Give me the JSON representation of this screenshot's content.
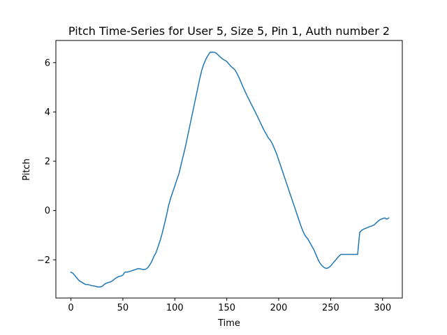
{
  "chart_data": {
    "type": "line",
    "title": "Pitch Time-Series for User 5, Size 5, Pin 1, Auth number 2",
    "xlabel": "Time",
    "ylabel": "Pitch",
    "xlim": [
      -14.5,
      319
    ],
    "ylim": [
      -3.55,
      6.9
    ],
    "xticks": [
      0,
      50,
      100,
      150,
      200,
      250,
      300
    ],
    "xtick_labels": [
      "0",
      "50",
      "100",
      "150",
      "200",
      "250",
      "300"
    ],
    "yticks": [
      -2,
      0,
      2,
      4,
      6
    ],
    "ytick_labels": [
      "−2",
      "0",
      "2",
      "4",
      "6"
    ],
    "grid": false,
    "series": [
      {
        "color": "#1f77b4",
        "x": [
          0,
          2,
          4,
          6,
          8,
          10,
          12,
          14,
          16,
          18,
          20,
          22,
          24,
          26,
          28,
          30,
          32,
          34,
          36,
          38,
          40,
          42,
          44,
          46,
          48,
          50,
          51,
          52,
          54,
          56,
          58,
          60,
          62,
          64,
          66,
          68,
          70,
          72,
          74,
          76,
          78,
          80,
          82,
          84,
          86,
          88,
          90,
          92,
          94,
          96,
          98,
          100,
          102,
          104,
          106,
          108,
          110,
          112,
          114,
          116,
          118,
          120,
          122,
          124,
          126,
          128,
          130,
          132,
          134,
          136,
          138,
          140,
          142,
          144,
          146,
          148,
          150,
          152,
          154,
          156,
          158,
          160,
          162,
          164,
          166,
          168,
          170,
          172,
          174,
          176,
          178,
          180,
          182,
          184,
          186,
          188,
          190,
          192,
          194,
          196,
          198,
          200,
          202,
          204,
          206,
          208,
          210,
          212,
          214,
          216,
          218,
          220,
          222,
          224,
          226,
          228,
          230,
          232,
          234,
          236,
          238,
          240,
          242,
          244,
          246,
          248,
          250,
          252,
          254,
          256,
          258,
          260,
          262,
          264,
          266,
          268,
          270,
          272,
          274,
          276,
          278,
          279,
          280,
          282,
          284,
          286,
          288,
          290,
          292,
          294,
          296,
          298,
          300,
          302,
          304,
          306
        ],
        "y": [
          -2.5,
          -2.55,
          -2.65,
          -2.75,
          -2.85,
          -2.9,
          -2.95,
          -3.0,
          -3.0,
          -3.02,
          -3.05,
          -3.06,
          -3.08,
          -3.1,
          -3.1,
          -3.08,
          -3.0,
          -2.95,
          -2.92,
          -2.9,
          -2.85,
          -2.78,
          -2.72,
          -2.68,
          -2.66,
          -2.62,
          -2.55,
          -2.5,
          -2.5,
          -2.48,
          -2.45,
          -2.42,
          -2.4,
          -2.36,
          -2.36,
          -2.38,
          -2.4,
          -2.38,
          -2.32,
          -2.2,
          -2.05,
          -1.85,
          -1.7,
          -1.45,
          -1.2,
          -0.9,
          -0.55,
          -0.2,
          0.2,
          0.5,
          0.75,
          1.0,
          1.25,
          1.5,
          1.85,
          2.2,
          2.55,
          2.95,
          3.35,
          3.75,
          4.15,
          4.55,
          4.95,
          5.35,
          5.7,
          5.95,
          6.15,
          6.3,
          6.42,
          6.43,
          6.42,
          6.38,
          6.3,
          6.22,
          6.15,
          6.1,
          6.05,
          5.95,
          5.85,
          5.78,
          5.7,
          5.55,
          5.38,
          5.18,
          4.98,
          4.8,
          4.62,
          4.45,
          4.28,
          4.12,
          3.95,
          3.78,
          3.6,
          3.42,
          3.25,
          3.1,
          2.95,
          2.85,
          2.7,
          2.5,
          2.3,
          2.05,
          1.8,
          1.55,
          1.3,
          1.05,
          0.8,
          0.55,
          0.3,
          0.05,
          -0.2,
          -0.45,
          -0.7,
          -0.9,
          -1.05,
          -1.15,
          -1.3,
          -1.45,
          -1.6,
          -1.8,
          -2.0,
          -2.15,
          -2.25,
          -2.32,
          -2.35,
          -2.32,
          -2.25,
          -2.15,
          -2.05,
          -1.95,
          -1.85,
          -1.78,
          -1.78,
          -1.78,
          -1.78,
          -1.78,
          -1.78,
          -1.78,
          -1.78,
          -1.78,
          -0.88,
          -0.85,
          -0.8,
          -0.75,
          -0.72,
          -0.68,
          -0.65,
          -0.62,
          -0.58,
          -0.5,
          -0.42,
          -0.36,
          -0.33,
          -0.3,
          -0.35,
          -0.3
        ],
        "linewidth": 1.5
      }
    ]
  }
}
